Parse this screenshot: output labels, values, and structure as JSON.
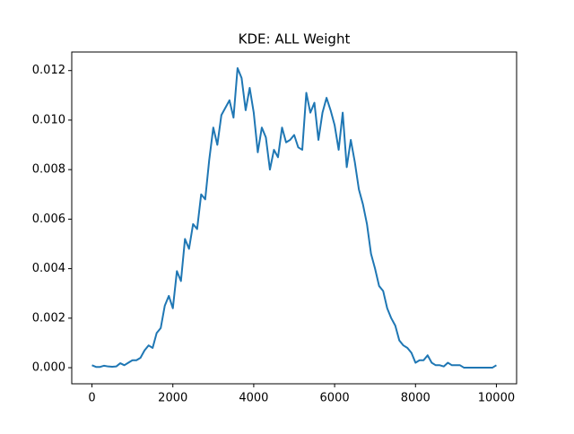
{
  "chart_data": {
    "type": "line",
    "title": "KDE: ALL Weight",
    "x": [
      0,
      100,
      200,
      300,
      400,
      500,
      600,
      700,
      800,
      900,
      1000,
      1100,
      1200,
      1300,
      1400,
      1500,
      1600,
      1700,
      1800,
      1900,
      2000,
      2100,
      2200,
      2300,
      2400,
      2500,
      2600,
      2700,
      2800,
      2900,
      3000,
      3100,
      3200,
      3300,
      3400,
      3500,
      3600,
      3700,
      3800,
      3900,
      4000,
      4100,
      4200,
      4300,
      4400,
      4500,
      4600,
      4700,
      4800,
      4900,
      5000,
      5100,
      5200,
      5300,
      5400,
      5500,
      5600,
      5700,
      5800,
      5900,
      6000,
      6100,
      6200,
      6300,
      6400,
      6500,
      6600,
      6700,
      6800,
      6900,
      7000,
      7100,
      7200,
      7300,
      7400,
      7500,
      7600,
      7700,
      7800,
      7900,
      8000,
      8100,
      8200,
      8300,
      8400,
      8500,
      8600,
      8700,
      8800,
      8900,
      9000,
      9100,
      9200,
      9300,
      9400,
      9500,
      9600,
      9700,
      9800,
      9900,
      10000
    ],
    "series": [
      {
        "color": "#1f77b4",
        "values": [
          0.0001,
          3e-05,
          3e-05,
          8e-05,
          5e-05,
          4e-05,
          5e-05,
          0.00018,
          0.0001,
          0.0002,
          0.0003,
          0.0003,
          0.0004,
          0.0007,
          0.0009,
          0.0008,
          0.0014,
          0.0016,
          0.0025,
          0.0029,
          0.0024,
          0.0039,
          0.0035,
          0.0052,
          0.0048,
          0.0058,
          0.0056,
          0.007,
          0.0068,
          0.0084,
          0.0097,
          0.009,
          0.0102,
          0.0105,
          0.0108,
          0.0101,
          0.0121,
          0.0117,
          0.0104,
          0.0113,
          0.0103,
          0.0087,
          0.0097,
          0.0093,
          0.008,
          0.0088,
          0.0085,
          0.0097,
          0.0091,
          0.0092,
          0.0094,
          0.0089,
          0.0088,
          0.0111,
          0.0103,
          0.0107,
          0.0092,
          0.0103,
          0.0109,
          0.0104,
          0.0098,
          0.0088,
          0.0103,
          0.0081,
          0.0092,
          0.0083,
          0.0072,
          0.0066,
          0.0058,
          0.0046,
          0.004,
          0.0033,
          0.0031,
          0.0024,
          0.002,
          0.0017,
          0.0011,
          0.0009,
          0.0008,
          0.0006,
          0.0002,
          0.0003,
          0.0003,
          0.0005,
          0.0002,
          0.0001,
          0.0001,
          5e-05,
          0.0002,
          0.0001,
          0.0001,
          0.0001,
          0,
          0,
          0,
          0,
          0,
          0,
          0,
          0,
          0.0001
        ]
      }
    ],
    "xlim": [
      -500,
      10500
    ],
    "xticks": [
      0,
      2000,
      4000,
      6000,
      8000,
      10000
    ],
    "ylim": [
      -0.00065,
      0.01275
    ],
    "yticks": [
      {
        "value": 0,
        "label": "0.000"
      },
      {
        "value": 0.002,
        "label": "0.002"
      },
      {
        "value": 0.004,
        "label": "0.004"
      },
      {
        "value": 0.006,
        "label": "0.006"
      },
      {
        "value": 0.008,
        "label": "0.008"
      },
      {
        "value": 0.01,
        "label": "0.010"
      },
      {
        "value": 0.012,
        "label": "0.012"
      }
    ]
  }
}
